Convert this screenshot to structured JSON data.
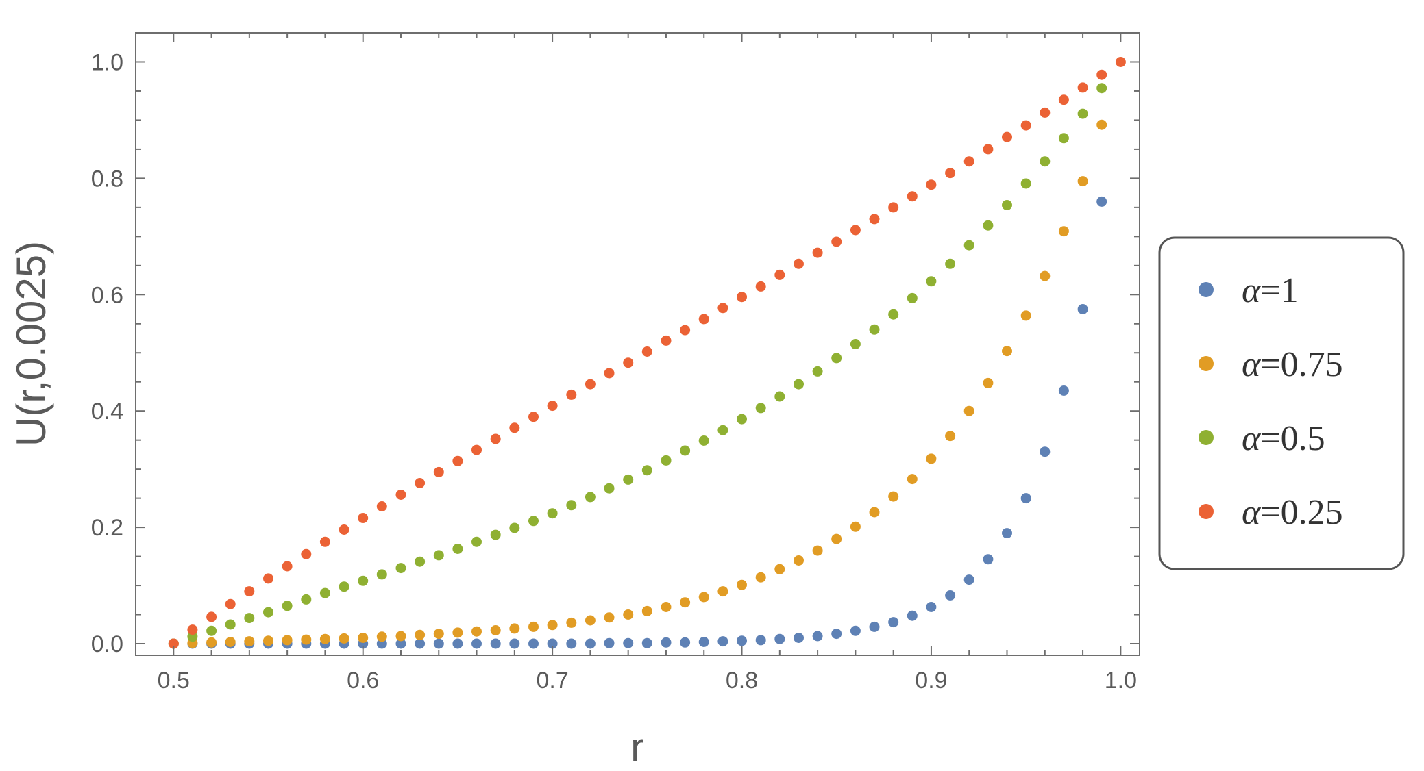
{
  "chart_data": {
    "type": "scatter",
    "xlabel": "r",
    "ylabel": "U(r,0.0025)",
    "xlim": [
      0.48,
      1.01
    ],
    "ylim": [
      -0.02,
      1.05
    ],
    "xticks": [
      0.5,
      0.6,
      0.7,
      0.8,
      0.9,
      1.0
    ],
    "xtick_labels": [
      "0.5",
      "0.6",
      "0.7",
      "0.8",
      "0.9",
      "1.0"
    ],
    "yticks": [
      0.0,
      0.2,
      0.4,
      0.6,
      0.8,
      1.0
    ],
    "ytick_labels": [
      "0.0",
      "0.2",
      "0.4",
      "0.6",
      "0.8",
      "1.0"
    ],
    "grid": false,
    "legend_position": "right",
    "x": [
      0.5,
      0.51,
      0.52,
      0.53,
      0.54,
      0.55,
      0.56,
      0.57,
      0.58,
      0.59,
      0.6,
      0.61,
      0.62,
      0.63,
      0.64,
      0.65,
      0.66,
      0.67,
      0.68,
      0.69,
      0.7,
      0.71,
      0.72,
      0.73,
      0.74,
      0.75,
      0.76,
      0.77,
      0.78,
      0.79,
      0.8,
      0.81,
      0.82,
      0.83,
      0.84,
      0.85,
      0.86,
      0.87,
      0.88,
      0.89,
      0.9,
      0.91,
      0.92,
      0.93,
      0.94,
      0.95,
      0.96,
      0.97,
      0.98,
      0.99,
      1.0
    ],
    "series": [
      {
        "name": "α=1",
        "color": "#5e81b5",
        "values": [
          0,
          0,
          0,
          0,
          0,
          0,
          0,
          0,
          0,
          0,
          0,
          0,
          0,
          0,
          0,
          0,
          0,
          0,
          0,
          0,
          0,
          0,
          0,
          0.001,
          0.001,
          0.001,
          0.002,
          0.002,
          0.003,
          0.004,
          0.005,
          0.006,
          0.008,
          0.01,
          0.013,
          0.017,
          0.022,
          0.029,
          0.037,
          0.048,
          0.063,
          0.083,
          0.11,
          0.145,
          0.19,
          0.25,
          0.33,
          0.435,
          0.575,
          0.76,
          null
        ]
      },
      {
        "name": "α=0.75",
        "color": "#e19c24",
        "values": [
          0,
          0.001,
          0.002,
          0.003,
          0.004,
          0.005,
          0.006,
          0.007,
          0.008,
          0.009,
          0.01,
          0.012,
          0.013,
          0.015,
          0.017,
          0.019,
          0.021,
          0.023,
          0.026,
          0.029,
          0.032,
          0.036,
          0.04,
          0.045,
          0.05,
          0.056,
          0.063,
          0.071,
          0.08,
          0.09,
          0.101,
          0.114,
          0.128,
          0.143,
          0.16,
          0.18,
          0.201,
          0.226,
          0.253,
          0.283,
          0.318,
          0.357,
          0.4,
          0.448,
          0.503,
          0.564,
          0.632,
          0.709,
          0.795,
          0.892,
          null
        ]
      },
      {
        "name": "α=0.5",
        "color": "#8fb032",
        "values": [
          0,
          0.012,
          0.022,
          0.033,
          0.044,
          0.054,
          0.065,
          0.076,
          0.087,
          0.098,
          0.108,
          0.119,
          0.13,
          0.141,
          0.152,
          0.163,
          0.175,
          0.187,
          0.199,
          0.211,
          0.224,
          0.238,
          0.252,
          0.267,
          0.282,
          0.298,
          0.315,
          0.332,
          0.349,
          0.367,
          0.386,
          0.405,
          0.425,
          0.446,
          0.468,
          0.491,
          0.515,
          0.54,
          0.566,
          0.594,
          0.623,
          0.653,
          0.685,
          0.719,
          0.754,
          0.791,
          0.829,
          0.869,
          0.911,
          0.955,
          null
        ]
      },
      {
        "name": "α=0.25",
        "color": "#eb6235",
        "values": [
          0,
          0.024,
          0.046,
          0.068,
          0.09,
          0.112,
          0.133,
          0.154,
          0.175,
          0.196,
          0.216,
          0.236,
          0.256,
          0.276,
          0.295,
          0.314,
          0.333,
          0.352,
          0.371,
          0.39,
          0.409,
          0.428,
          0.446,
          0.465,
          0.483,
          0.502,
          0.521,
          0.539,
          0.558,
          0.577,
          0.596,
          0.614,
          0.634,
          0.653,
          0.672,
          0.691,
          0.711,
          0.73,
          0.75,
          0.769,
          0.789,
          0.809,
          0.829,
          0.85,
          0.871,
          0.891,
          0.913,
          0.935,
          0.956,
          0.978,
          1.0
        ]
      }
    ]
  }
}
